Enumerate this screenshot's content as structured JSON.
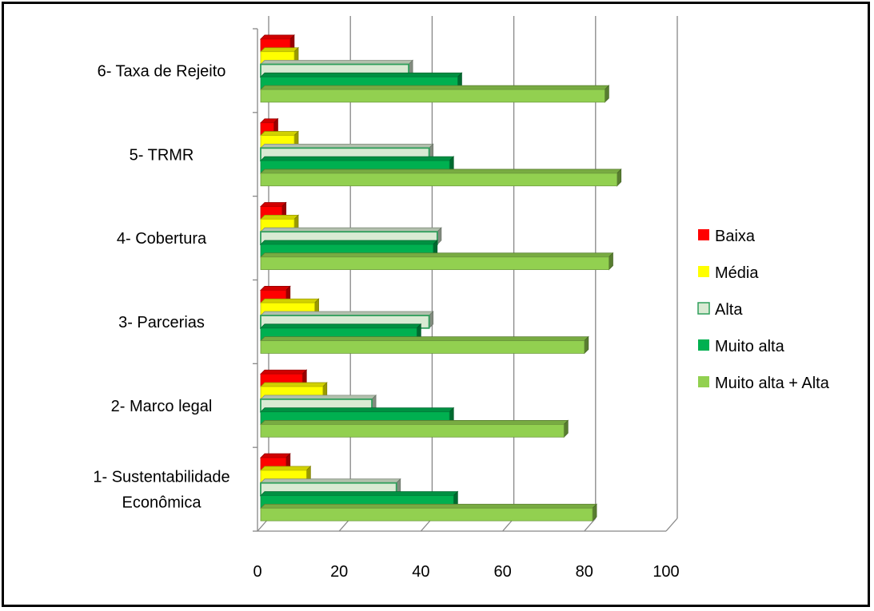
{
  "chart_data": {
    "type": "bar",
    "orientation": "horizontal",
    "style": "3d-clustered",
    "title": "",
    "xlabel": "",
    "ylabel": "",
    "xlim": [
      0,
      100
    ],
    "x_ticks": [
      0,
      20,
      40,
      60,
      80,
      100
    ],
    "grid": true,
    "legend_position": "right",
    "categories": [
      [
        "1- Sustentabilidade",
        "Econômica"
      ],
      [
        "2- Marco legal"
      ],
      [
        "3- Parcerias"
      ],
      [
        "4- Cobertura"
      ],
      [
        "5- TRMR"
      ],
      [
        "6- Taxa de Rejeito"
      ]
    ],
    "series": [
      {
        "name": "Baixa",
        "color": "#ff0000",
        "values": [
          7,
          11,
          7,
          6,
          4,
          8
        ]
      },
      {
        "name": "Média",
        "color": "#ffff00",
        "values": [
          12,
          16,
          14,
          9,
          9,
          9
        ]
      },
      {
        "name": "Alta",
        "color": "#d9ead3",
        "values": [
          34,
          28,
          42,
          44,
          42,
          37
        ]
      },
      {
        "name": "Muito alta",
        "color": "#00b050",
        "values": [
          48,
          47,
          39,
          43,
          47,
          49
        ]
      },
      {
        "name": "Muito alta + Alta",
        "color": "#92d050",
        "values": [
          82,
          75,
          80,
          86,
          88,
          85
        ]
      }
    ]
  }
}
